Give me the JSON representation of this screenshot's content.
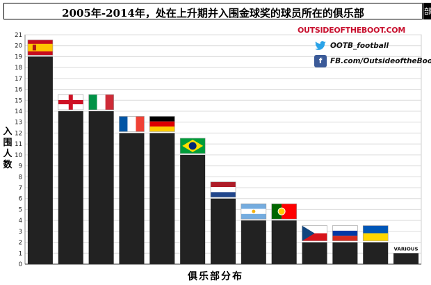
{
  "title": "2005年-2014年，处在上升期并入围金球奖的球员所在的俱乐部",
  "title_tail": "部",
  "brand": "OUTSIDEOFTHEBOOT.COM",
  "social": {
    "twitter": "OOTB_football",
    "facebook": "FB.com/OutsideoftheBoot"
  },
  "colors": {
    "bar": "#222222",
    "grid": "#dcdcdc",
    "brand": "#c8102e",
    "twitter": "#2aa3e8",
    "facebook": "#3b5a98"
  },
  "chart_data": {
    "type": "bar",
    "xlabel": "俱乐部分布",
    "ylabel": "入围人数",
    "ylim": [
      0,
      21
    ],
    "yticks": [
      0,
      1,
      2,
      3,
      4,
      5,
      6,
      7,
      8,
      9,
      10,
      11,
      12,
      13,
      14,
      15,
      16,
      17,
      18,
      19,
      20,
      21
    ],
    "grid": true,
    "categories": [
      "Spain",
      "England",
      "Italy",
      "France",
      "Germany",
      "Brazil",
      "Netherlands",
      "Argentina",
      "Portugal",
      "Czech Republic",
      "Russia",
      "Ukraine",
      "VARIOUS"
    ],
    "category_markers": [
      "spain-flag",
      "england-flag",
      "italy-flag",
      "france-flag",
      "germany-flag",
      "brazil-flag",
      "netherlands-flag",
      "argentina-flag",
      "portugal-flag",
      "czech-flag",
      "russia-flag",
      "ukraine-flag",
      "text"
    ],
    "values": [
      19,
      14,
      14,
      12,
      12,
      10,
      6,
      4,
      4,
      2,
      2,
      2,
      1
    ],
    "visible_category_label": "VARIOUS"
  }
}
